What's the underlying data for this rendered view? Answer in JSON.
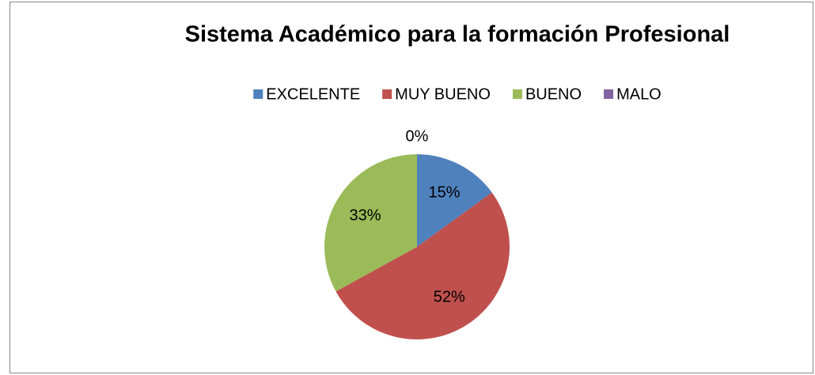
{
  "chart_data": {
    "type": "pie",
    "title": "Sistema Académico para la formación Profesional",
    "categories": [
      "EXCELENTE",
      "MUY BUENO",
      "BUENO",
      "MALO"
    ],
    "values": [
      15,
      52,
      33,
      0
    ],
    "value_labels": [
      "15%",
      "52%",
      "33%",
      "0%"
    ],
    "colors": [
      "#4f81bd",
      "#c0504d",
      "#9bbb59",
      "#8064a2"
    ],
    "legend": "top"
  }
}
